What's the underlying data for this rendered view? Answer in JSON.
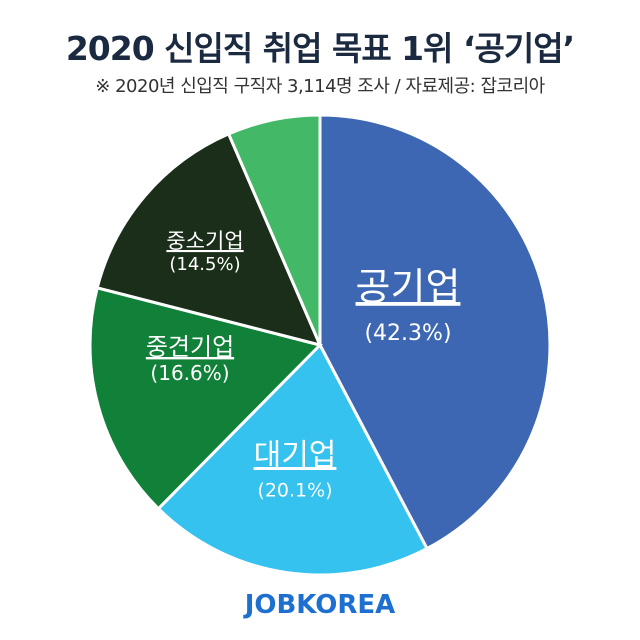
{
  "chart_data": {
    "type": "pie",
    "title": "2020 신입직 취업 목표 1위 ‘공기업’",
    "subtitle": "※ 2020년 신입직 구직자 3,114명 조사 / 자료제공: 잡코리아",
    "slices": [
      {
        "name": "공기업",
        "value": 42.3,
        "label": "(42.3%)",
        "color": "#3d67b3"
      },
      {
        "name": "대기업",
        "value": 20.1,
        "label": "(20.1%)",
        "color": "#35c2ef"
      },
      {
        "name": "중견기업",
        "value": 16.6,
        "label": "(16.6%)",
        "color": "#118039"
      },
      {
        "name": "중소기업",
        "value": 14.5,
        "label": "(14.5%)",
        "color": "#1a2e1a"
      },
      {
        "name": "",
        "value": 6.5,
        "label": "",
        "color": "#43b866"
      }
    ],
    "start": "top",
    "direction": "clockwise"
  },
  "logo": "JOBKOREA"
}
